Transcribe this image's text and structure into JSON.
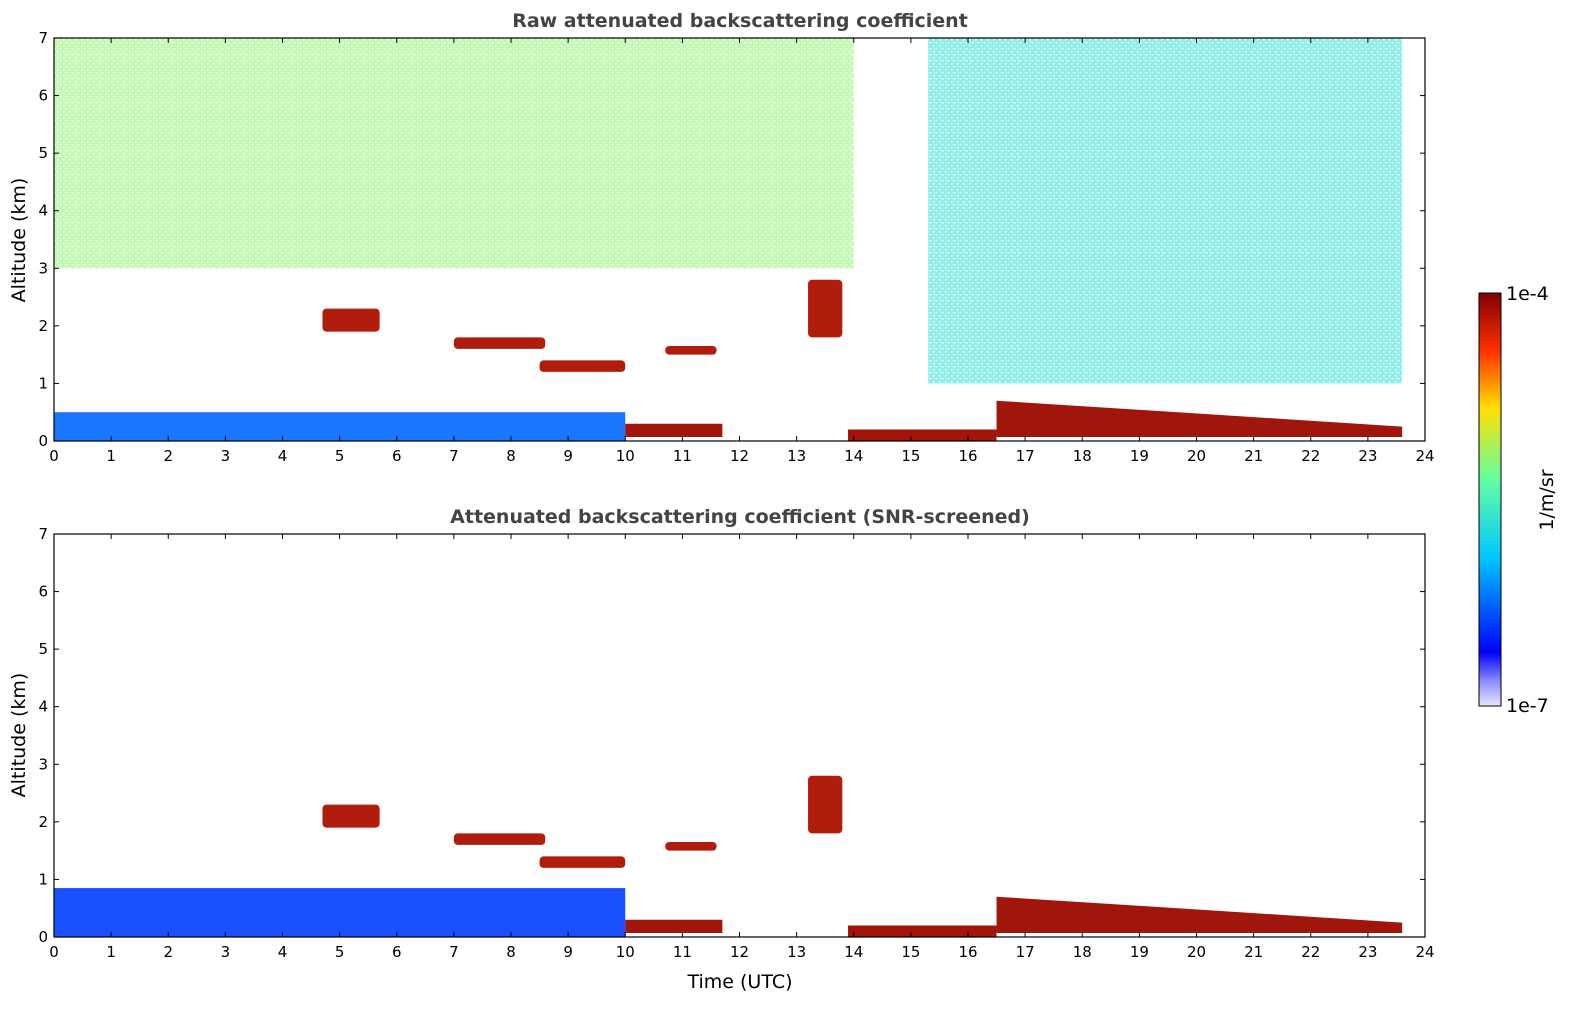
{
  "chart_data": [
    {
      "type": "heatmap",
      "title": "Raw attenuated backscattering coefficient",
      "xlabel": "",
      "ylabel": "Altitude (km)",
      "xlim": [
        0,
        24
      ],
      "ylim": [
        0,
        7
      ],
      "xticks": [
        "0",
        "1",
        "2",
        "3",
        "4",
        "5",
        "6",
        "7",
        "8",
        "9",
        "10",
        "11",
        "12",
        "13",
        "14",
        "15",
        "16",
        "17",
        "18",
        "19",
        "20",
        "21",
        "22",
        "23",
        "24"
      ],
      "yticks": [
        "0",
        "1",
        "2",
        "3",
        "4",
        "5",
        "6",
        "7"
      ],
      "features": [
        {
          "kind": "boundary-layer",
          "x": [
            0,
            10
          ],
          "y_top": 0.5,
          "level": 0.25
        },
        {
          "kind": "cloud",
          "x": [
            4.7,
            5.7
          ],
          "y": [
            1.9,
            2.3
          ],
          "level": 0.95
        },
        {
          "kind": "cloud",
          "x": [
            7.0,
            8.6
          ],
          "y": [
            1.6,
            1.8
          ],
          "level": 0.95
        },
        {
          "kind": "cloud",
          "x": [
            8.5,
            10.0
          ],
          "y": [
            1.2,
            1.4
          ],
          "level": 0.95
        },
        {
          "kind": "cloud",
          "x": [
            10.7,
            11.6
          ],
          "y": [
            1.5,
            1.65
          ],
          "level": 0.95
        },
        {
          "kind": "cloud",
          "x": [
            13.2,
            13.8
          ],
          "y": [
            1.8,
            2.8
          ],
          "level": 0.95
        },
        {
          "kind": "cloud-base",
          "x": [
            10.0,
            11.7
          ],
          "y": [
            0.15,
            0.3
          ],
          "level": 0.97
        },
        {
          "kind": "cloud-base",
          "x": [
            13.9,
            16.5
          ],
          "y": [
            0.05,
            0.2
          ],
          "level": 0.97
        },
        {
          "kind": "cloud-base",
          "x": [
            16.5,
            23.6
          ],
          "y": [
            0.15,
            0.7
          ],
          "level": 0.97
        },
        {
          "kind": "noise-upper",
          "x": [
            0,
            14
          ],
          "y": [
            3,
            7
          ],
          "level": 0.6
        },
        {
          "kind": "noise-upper",
          "x": [
            15.3,
            23.6
          ],
          "y": [
            1,
            7
          ],
          "level": 0.45
        }
      ]
    },
    {
      "type": "heatmap",
      "title": "Attenuated backscattering coefficient (SNR-screened)",
      "xlabel": "Time (UTC)",
      "ylabel": "Altitude (km)",
      "xlim": [
        0,
        24
      ],
      "ylim": [
        0,
        7
      ],
      "xticks": [
        "0",
        "1",
        "2",
        "3",
        "4",
        "5",
        "6",
        "7",
        "8",
        "9",
        "10",
        "11",
        "12",
        "13",
        "14",
        "15",
        "16",
        "17",
        "18",
        "19",
        "20",
        "21",
        "22",
        "23",
        "24"
      ],
      "yticks": [
        "0",
        "1",
        "2",
        "3",
        "4",
        "5",
        "6",
        "7"
      ],
      "features": [
        {
          "kind": "boundary-layer",
          "x": [
            0,
            10
          ],
          "y_top": 0.85,
          "level": 0.2
        },
        {
          "kind": "cloud",
          "x": [
            4.7,
            5.7
          ],
          "y": [
            1.9,
            2.3
          ],
          "level": 0.95
        },
        {
          "kind": "cloud",
          "x": [
            7.0,
            8.6
          ],
          "y": [
            1.6,
            1.8
          ],
          "level": 0.95
        },
        {
          "kind": "cloud",
          "x": [
            8.5,
            10.0
          ],
          "y": [
            1.2,
            1.4
          ],
          "level": 0.95
        },
        {
          "kind": "cloud",
          "x": [
            10.7,
            11.6
          ],
          "y": [
            1.5,
            1.65
          ],
          "level": 0.95
        },
        {
          "kind": "cloud",
          "x": [
            13.2,
            13.8
          ],
          "y": [
            1.8,
            2.8
          ],
          "level": 0.95
        },
        {
          "kind": "cloud-base",
          "x": [
            10.0,
            11.7
          ],
          "y": [
            0.15,
            0.3
          ],
          "level": 0.97
        },
        {
          "kind": "cloud-base",
          "x": [
            13.9,
            16.5
          ],
          "y": [
            0.05,
            0.2
          ],
          "level": 0.97
        },
        {
          "kind": "cloud-base",
          "x": [
            16.5,
            23.6
          ],
          "y": [
            0.15,
            0.7
          ],
          "level": 0.97
        }
      ]
    }
  ],
  "colorbar": {
    "label": "1/m/sr",
    "max_label": "1e-4",
    "min_label": "1e-7",
    "scale": "log",
    "colormap": "jet",
    "range": [
      1e-07,
      0.0001
    ]
  }
}
